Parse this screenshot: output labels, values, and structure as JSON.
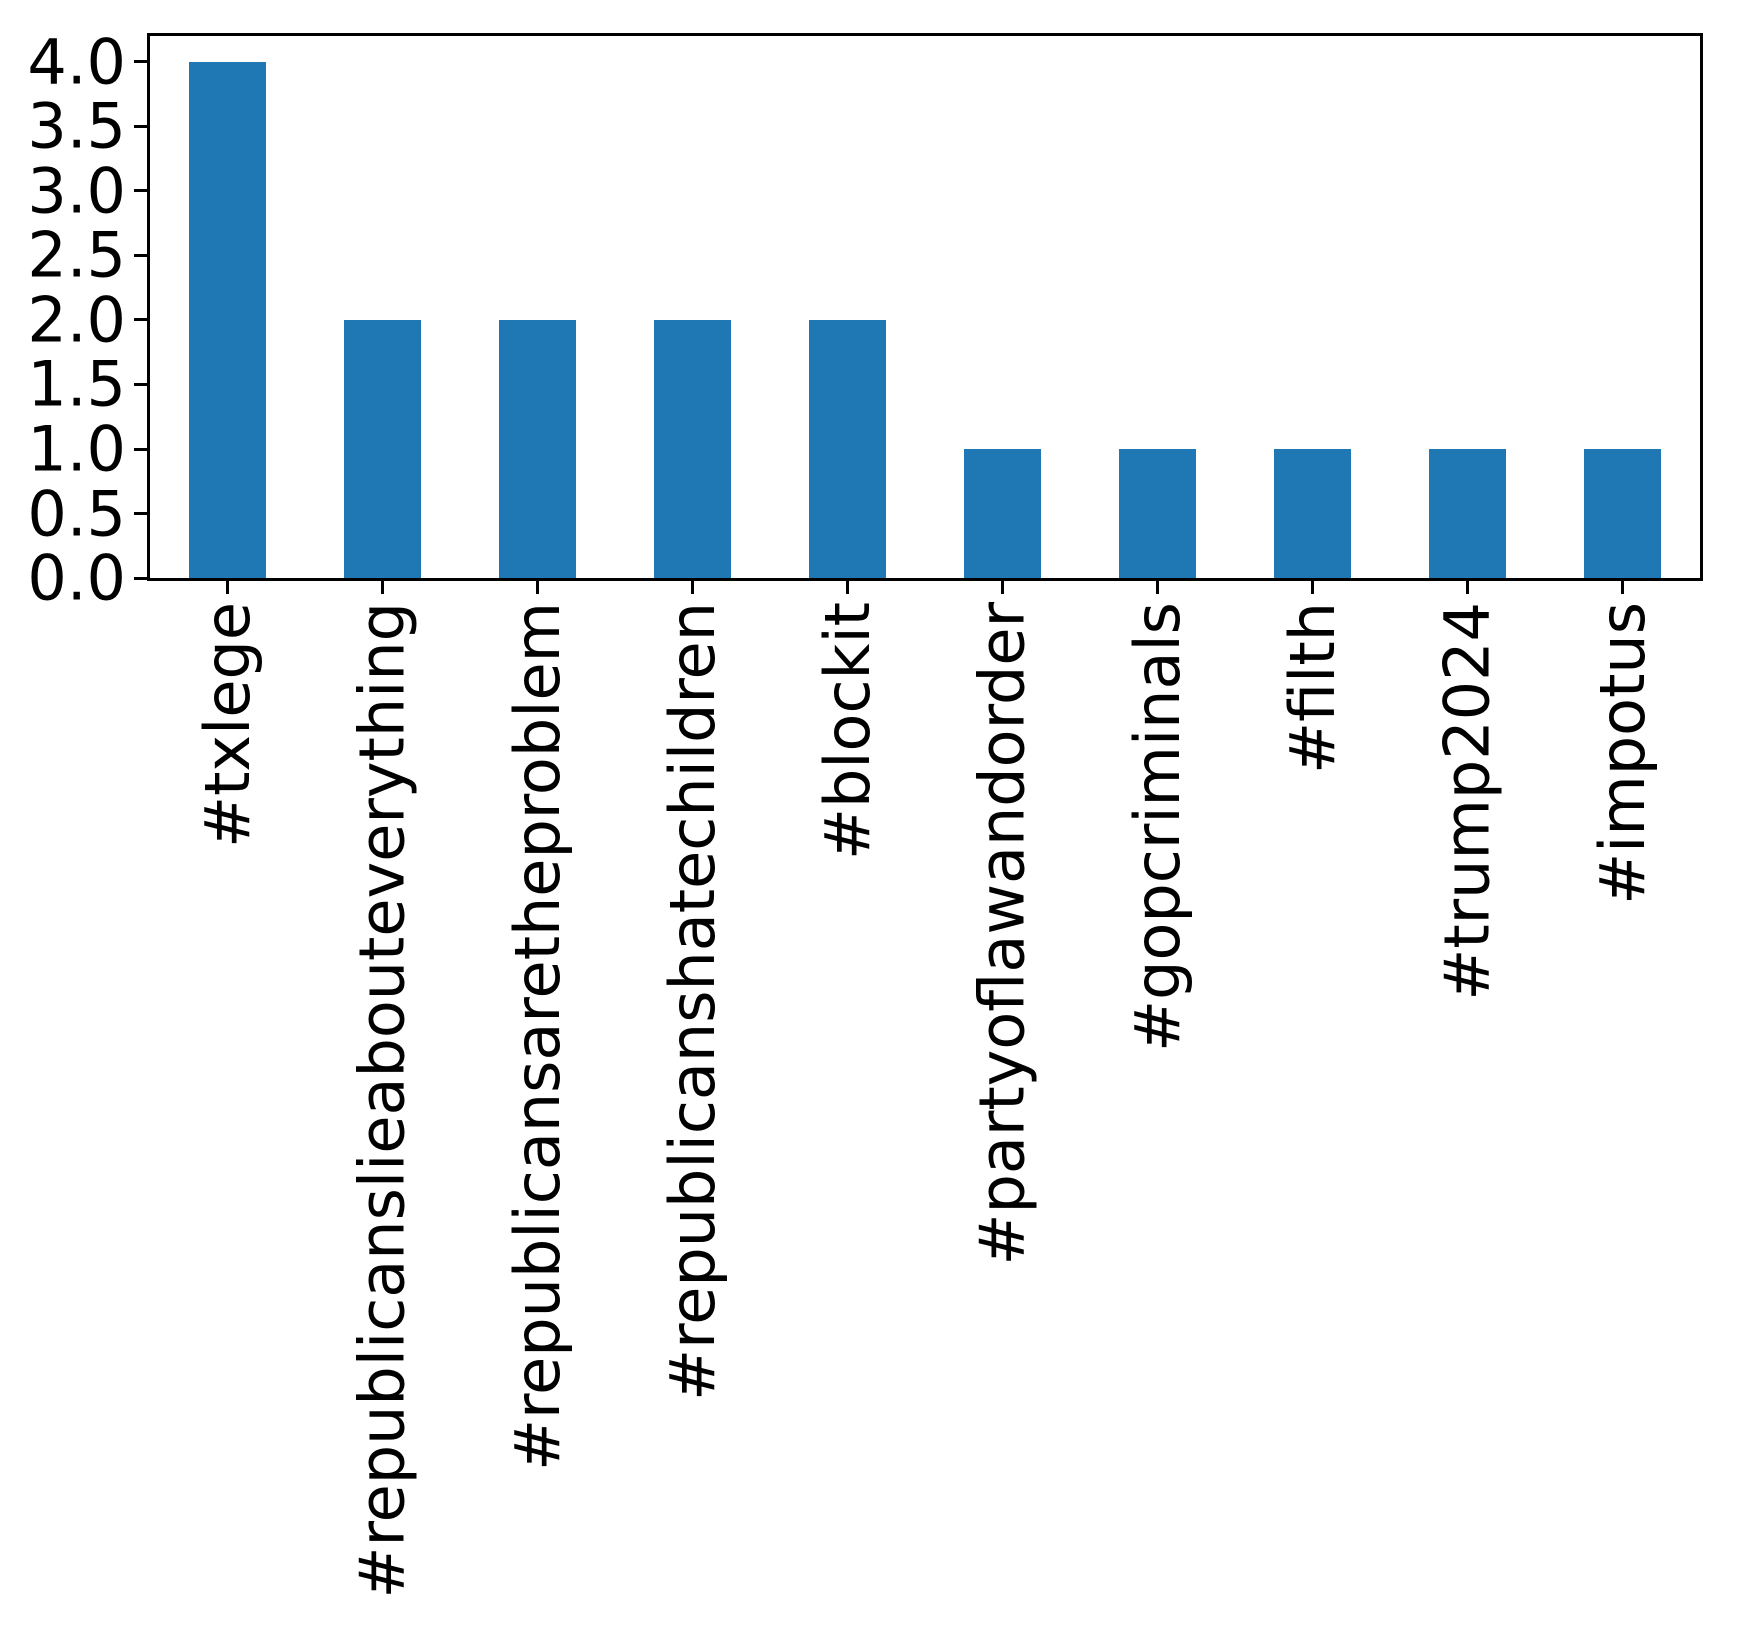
{
  "chart_data": {
    "type": "bar",
    "title": "",
    "subtitle": "",
    "xlabel": "",
    "ylabel": "",
    "categories": [
      "#txlege",
      "#republicanslieabouteverything",
      "#republicansaretheproblem",
      "#republicanshatechildren",
      "#blockit",
      "#partyoflawandorder",
      "#gopcriminals",
      "#filth",
      "#trump2024",
      "#impotus"
    ],
    "values": [
      4,
      2,
      2,
      2,
      2,
      1,
      1,
      1,
      1,
      1
    ],
    "ylim": [
      0,
      4.2
    ],
    "yticks": [
      0.0,
      0.5,
      1.0,
      1.5,
      2.0,
      2.5,
      3.0,
      3.5,
      4.0
    ],
    "ytick_labels": [
      "0.0",
      "0.5",
      "1.0",
      "1.5",
      "2.0",
      "2.5",
      "3.0",
      "3.5",
      "4.0"
    ],
    "x_tick_label_rotation": 90,
    "grid": false,
    "legend": null,
    "bar_width_fraction": 0.5,
    "bar_color": "#1f77b4",
    "axis_color": "#000000",
    "text_color": "#000000",
    "background_color": "#ffffff"
  }
}
